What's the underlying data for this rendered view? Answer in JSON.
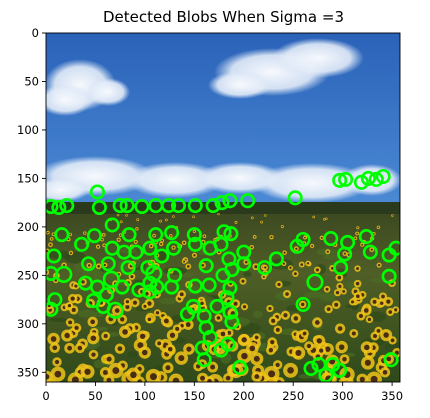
{
  "title": "Detected Blobs When Sigma =3",
  "axes": {
    "x_ticks": [
      0,
      50,
      100,
      150,
      200,
      250,
      300,
      350
    ],
    "y_ticks": [
      0,
      50,
      100,
      150,
      200,
      250,
      300,
      350
    ],
    "xlim": [
      0,
      358
    ],
    "ylim": [
      360,
      0
    ]
  },
  "image": {
    "description_icon": "sunflower-field-photo",
    "colors": {
      "sky_top": "#2d6fc4",
      "sky_mid": "#5b97de",
      "cloud": "#eef3fb",
      "horizon_trees": "#2f3b1f",
      "field_green": "#3b5a22",
      "sunflower_yellow": "#f0c419",
      "sunflower_center": "#4a2c12",
      "blob_ring": "#00ff00"
    }
  },
  "blobs": [
    {
      "x": 52,
      "y": 164,
      "r": 6
    },
    {
      "x": 5,
      "y": 179,
      "r": 6
    },
    {
      "x": 13,
      "y": 180,
      "r": 6
    },
    {
      "x": 21,
      "y": 178,
      "r": 6
    },
    {
      "x": 54,
      "y": 180,
      "r": 6
    },
    {
      "x": 75,
      "y": 178,
      "r": 6
    },
    {
      "x": 82,
      "y": 178,
      "r": 6
    },
    {
      "x": 97,
      "y": 179,
      "r": 6
    },
    {
      "x": 111,
      "y": 178,
      "r": 6
    },
    {
      "x": 124,
      "y": 178,
      "r": 6
    },
    {
      "x": 134,
      "y": 178,
      "r": 6
    },
    {
      "x": 151,
      "y": 178,
      "r": 6
    },
    {
      "x": 169,
      "y": 178,
      "r": 6
    },
    {
      "x": 178,
      "y": 175,
      "r": 6
    },
    {
      "x": 186,
      "y": 173,
      "r": 6
    },
    {
      "x": 204,
      "y": 173,
      "r": 6
    },
    {
      "x": 252,
      "y": 170,
      "r": 6
    },
    {
      "x": 297,
      "y": 152,
      "r": 6
    },
    {
      "x": 303,
      "y": 151,
      "r": 6
    },
    {
      "x": 319,
      "y": 154,
      "r": 6
    },
    {
      "x": 326,
      "y": 150,
      "r": 6
    },
    {
      "x": 341,
      "y": 148,
      "r": 6
    },
    {
      "x": 334,
      "y": 151,
      "r": 6
    },
    {
      "x": 16,
      "y": 208,
      "r": 6
    },
    {
      "x": 49,
      "y": 209,
      "r": 6
    },
    {
      "x": 67,
      "y": 198,
      "r": 6
    },
    {
      "x": 84,
      "y": 208,
      "r": 6
    },
    {
      "x": 111,
      "y": 208,
      "r": 6
    },
    {
      "x": 127,
      "y": 206,
      "r": 6
    },
    {
      "x": 150,
      "y": 208,
      "r": 6
    },
    {
      "x": 180,
      "y": 205,
      "r": 6
    },
    {
      "x": 187,
      "y": 207,
      "r": 6
    },
    {
      "x": 260,
      "y": 213,
      "r": 6
    },
    {
      "x": 288,
      "y": 212,
      "r": 6
    },
    {
      "x": 305,
      "y": 216,
      "r": 6
    },
    {
      "x": 324,
      "y": 210,
      "r": 6
    },
    {
      "x": 354,
      "y": 222,
      "r": 6
    },
    {
      "x": 8,
      "y": 230,
      "r": 6
    },
    {
      "x": 36,
      "y": 218,
      "r": 6
    },
    {
      "x": 67,
      "y": 222,
      "r": 6
    },
    {
      "x": 79,
      "y": 226,
      "r": 6
    },
    {
      "x": 91,
      "y": 226,
      "r": 6
    },
    {
      "x": 105,
      "y": 222,
      "r": 6
    },
    {
      "x": 117,
      "y": 230,
      "r": 6
    },
    {
      "x": 129,
      "y": 222,
      "r": 6
    },
    {
      "x": 151,
      "y": 218,
      "r": 6
    },
    {
      "x": 166,
      "y": 222,
      "r": 6
    },
    {
      "x": 177,
      "y": 218,
      "r": 6
    },
    {
      "x": 185,
      "y": 233,
      "r": 6
    },
    {
      "x": 200,
      "y": 226,
      "r": 6
    },
    {
      "x": 254,
      "y": 220,
      "r": 6
    },
    {
      "x": 302,
      "y": 228,
      "r": 6
    },
    {
      "x": 328,
      "y": 226,
      "r": 6
    },
    {
      "x": 347,
      "y": 229,
      "r": 6
    },
    {
      "x": 233,
      "y": 233,
      "r": 6
    },
    {
      "x": 18,
      "y": 249,
      "r": 7
    },
    {
      "x": 5,
      "y": 248,
      "r": 6
    },
    {
      "x": 43,
      "y": 238,
      "r": 6
    },
    {
      "x": 63,
      "y": 238,
      "r": 6
    },
    {
      "x": 66,
      "y": 254,
      "r": 7
    },
    {
      "x": 83,
      "y": 242,
      "r": 6
    },
    {
      "x": 103,
      "y": 242,
      "r": 6
    },
    {
      "x": 109,
      "y": 248,
      "r": 7
    },
    {
      "x": 130,
      "y": 250,
      "r": 6
    },
    {
      "x": 162,
      "y": 240,
      "r": 6
    },
    {
      "x": 179,
      "y": 250,
      "r": 6
    },
    {
      "x": 188,
      "y": 244,
      "r": 6
    },
    {
      "x": 200,
      "y": 238,
      "r": 6
    },
    {
      "x": 221,
      "y": 242,
      "r": 6
    },
    {
      "x": 298,
      "y": 242,
      "r": 6
    },
    {
      "x": 347,
      "y": 251,
      "r": 6
    },
    {
      "x": 40,
      "y": 258,
      "r": 6
    },
    {
      "x": 52,
      "y": 262,
      "r": 6
    },
    {
      "x": 61,
      "y": 270,
      "r": 6
    },
    {
      "x": 77,
      "y": 262,
      "r": 6
    },
    {
      "x": 94,
      "y": 265,
      "r": 6
    },
    {
      "x": 105,
      "y": 258,
      "r": 6
    },
    {
      "x": 112,
      "y": 262,
      "r": 6
    },
    {
      "x": 127,
      "y": 262,
      "r": 6
    },
    {
      "x": 151,
      "y": 261,
      "r": 6
    },
    {
      "x": 165,
      "y": 260,
      "r": 6
    },
    {
      "x": 186,
      "y": 263,
      "r": 6
    },
    {
      "x": 272,
      "y": 257,
      "r": 7
    },
    {
      "x": 9,
      "y": 275,
      "r": 6
    },
    {
      "x": 5,
      "y": 285,
      "r": 6
    },
    {
      "x": 48,
      "y": 276,
      "r": 6
    },
    {
      "x": 58,
      "y": 282,
      "r": 6
    },
    {
      "x": 70,
      "y": 286,
      "r": 7
    },
    {
      "x": 105,
      "y": 267,
      "r": 6
    },
    {
      "x": 143,
      "y": 290,
      "r": 6
    },
    {
      "x": 149,
      "y": 282,
      "r": 6
    },
    {
      "x": 173,
      "y": 282,
      "r": 6
    },
    {
      "x": 183,
      "y": 273,
      "r": 6
    },
    {
      "x": 186,
      "y": 288,
      "r": 6
    },
    {
      "x": 160,
      "y": 292,
      "r": 6
    },
    {
      "x": 162,
      "y": 304,
      "r": 6
    },
    {
      "x": 166,
      "y": 314,
      "r": 6
    },
    {
      "x": 260,
      "y": 280,
      "r": 6
    },
    {
      "x": 188,
      "y": 298,
      "r": 6
    },
    {
      "x": 158,
      "y": 325,
      "r": 6
    },
    {
      "x": 160,
      "y": 337,
      "r": 6
    },
    {
      "x": 177,
      "y": 327,
      "r": 6
    },
    {
      "x": 184,
      "y": 321,
      "r": 6
    },
    {
      "x": 196,
      "y": 345,
      "r": 6
    },
    {
      "x": 268,
      "y": 346,
      "r": 6
    },
    {
      "x": 276,
      "y": 342,
      "r": 6
    },
    {
      "x": 283,
      "y": 353,
      "r": 6
    },
    {
      "x": 290,
      "y": 342,
      "r": 6
    },
    {
      "x": 297,
      "y": 348,
      "r": 6
    },
    {
      "x": 349,
      "y": 337,
      "r": 6
    }
  ]
}
